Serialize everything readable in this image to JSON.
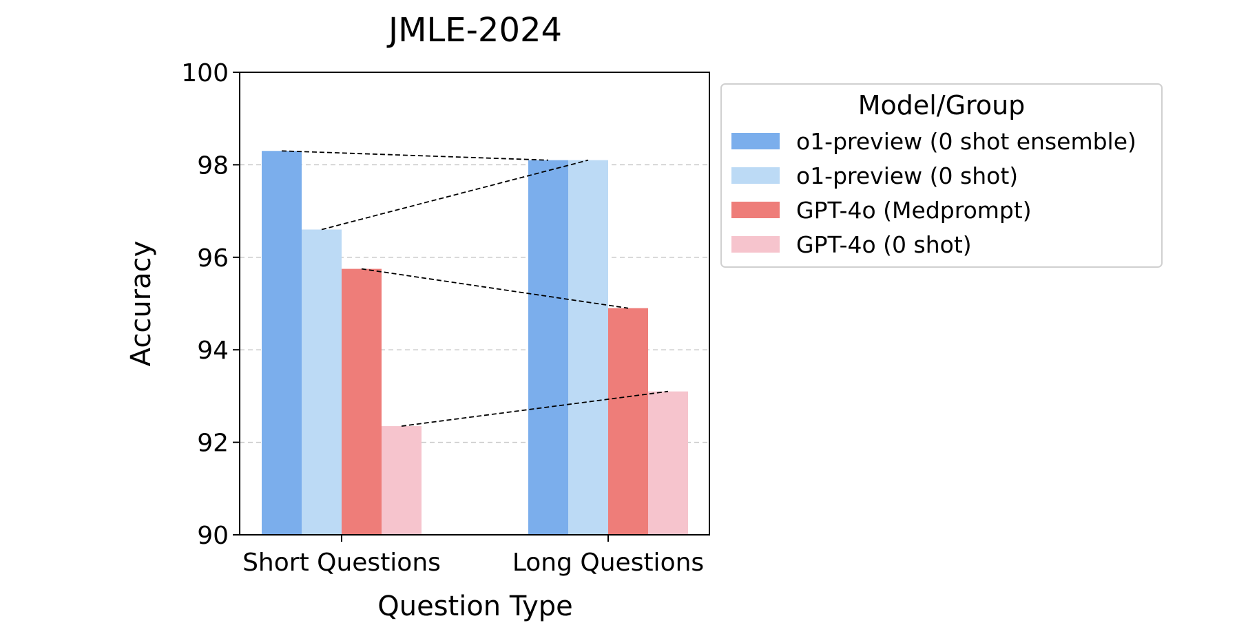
{
  "chart_data": {
    "type": "bar",
    "title": "JMLE-2024",
    "xlabel": "Question Type",
    "ylabel": "Accuracy",
    "ylim": [
      90,
      100
    ],
    "yticks": [
      "90",
      "92",
      "94",
      "96",
      "98",
      "100"
    ],
    "grid": "horizontal-dashed",
    "categories": [
      "Short Questions",
      "Long Questions"
    ],
    "series": [
      {
        "name": "o1-preview (0 shot ensemble)",
        "color": "#7baeec",
        "values": [
          98.3,
          98.1
        ]
      },
      {
        "name": "o1-preview (0 shot)",
        "color": "#bcdaf5",
        "values": [
          96.6,
          98.1
        ]
      },
      {
        "name": "GPT-4o (Medprompt)",
        "color": "#ee7d79",
        "values": [
          95.75,
          94.9
        ]
      },
      {
        "name": "GPT-4o (0 shot)",
        "color": "#f6c4cd",
        "values": [
          92.35,
          93.1
        ]
      }
    ],
    "connectors": "dashed lines linking each series from Short to Long Questions",
    "legend": {
      "title": "Model/Group",
      "placement": "outside-right"
    }
  }
}
